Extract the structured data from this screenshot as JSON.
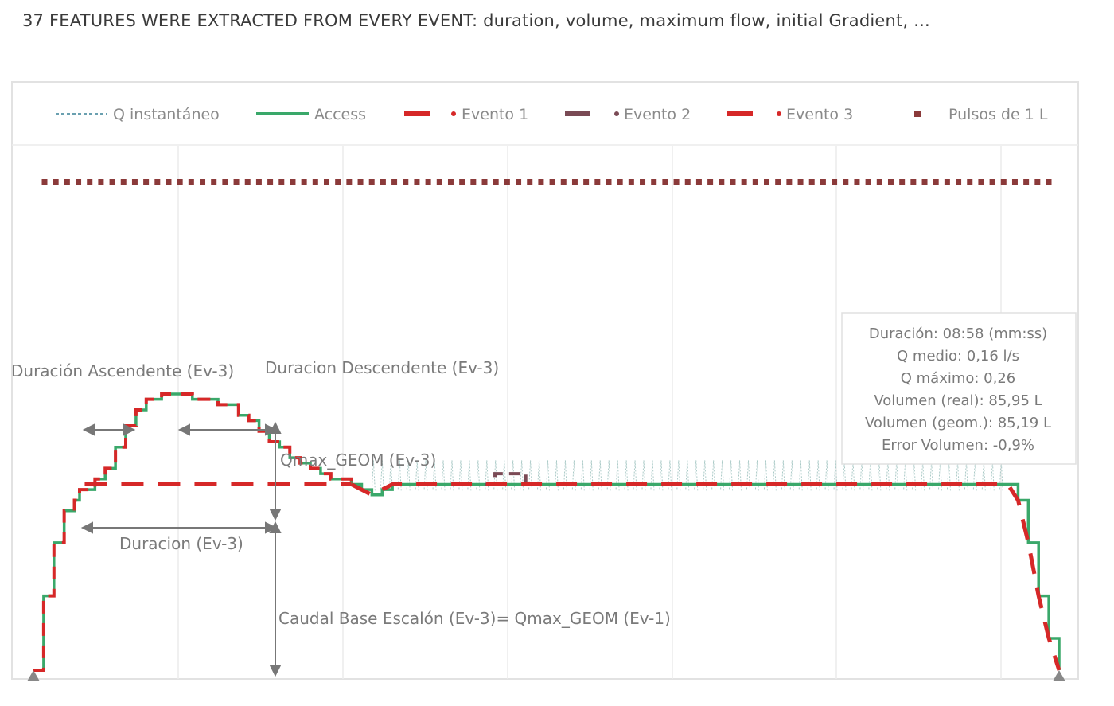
{
  "heading": "37 FEATURES WERE EXTRACTED FROM EVERY EVENT: duration, volume, maximum flow, initial Gradient, ...",
  "chart_data": {
    "type": "line",
    "grid": true,
    "legend_position": "top",
    "legend": [
      {
        "key": "q",
        "label": "Q instantáneo",
        "color": "#6aa0b0",
        "style": "dotted"
      },
      {
        "key": "access",
        "label": "Access",
        "color": "#3aa86a",
        "style": "solid"
      },
      {
        "key": "ev1",
        "label": "Evento 1",
        "color": "#d62828",
        "style": "dashed"
      },
      {
        "key": "ev2",
        "label": "Evento 2",
        "color": "#7a4a55",
        "style": "dashed"
      },
      {
        "key": "ev3",
        "label": "Evento 3",
        "color": "#d62828",
        "style": "dashed"
      },
      {
        "key": "pulses",
        "label": "Pulsos de 1 L",
        "color": "#8b3a3a",
        "style": "square"
      }
    ],
    "annotations": {
      "asc": "Duración Ascendente (Ev-3)",
      "desc": "Duracion Descendente (Ev-3)",
      "qmax": "Qmax_GEOM (Ev-3)",
      "dur": "Duracion (Ev-3)",
      "base": "Caudal Base Escalón (Ev-3)= Qmax_GEOM (Ev-1)"
    },
    "info_box": [
      "Duración: 08:58 (mm:ss)",
      "Q medio: 0,16 l/s",
      "Q máximo: 0,26",
      "Volumen (real): 85,95 L",
      "Volumen (geom.): 85,19 L",
      "Error Volumen: -0,9%"
    ],
    "series": [
      {
        "key": "event3",
        "x": [
          0,
          0.01,
          0.02,
          0.03,
          0.04,
          0.045,
          0.055,
          0.06,
          0.07,
          0.08,
          0.09,
          0.1,
          0.11,
          0.12,
          0.125,
          0.13,
          0.14,
          0.15,
          0.155,
          0.17,
          0.18,
          0.2,
          0.21,
          0.22,
          0.23,
          0.24,
          0.25,
          0.26,
          0.27,
          0.28,
          0.29,
          0.3,
          0.31
        ],
        "y": [
          0,
          0.07,
          0.12,
          0.15,
          0.16,
          0.17,
          0.17,
          0.18,
          0.19,
          0.21,
          0.23,
          0.245,
          0.255,
          0.255,
          0.26,
          0.26,
          0.26,
          0.26,
          0.255,
          0.255,
          0.25,
          0.24,
          0.235,
          0.225,
          0.215,
          0.21,
          0.2,
          0.195,
          0.19,
          0.185,
          0.18,
          0.18,
          0.175
        ]
      },
      {
        "key": "event1",
        "x": [
          0.31,
          0.32,
          0.33,
          0.34,
          0.35,
          0.45,
          0.46,
          0.47,
          0.48,
          0.5,
          0.9,
          0.95,
          0.96,
          0.97,
          0.98,
          0.99,
          1.0
        ],
        "y": [
          0.175,
          0.17,
          0.165,
          0.17,
          0.175,
          0.175,
          0.175,
          0.175,
          0.175,
          0.175,
          0.175,
          0.175,
          0.16,
          0.12,
          0.07,
          0.03,
          0.0
        ]
      },
      {
        "key": "event2",
        "x": [
          0.44,
          0.45,
          0.47,
          0.48
        ],
        "y": [
          0.175,
          0.185,
          0.185,
          0.175
        ]
      }
    ],
    "pulses_count": 90
  }
}
